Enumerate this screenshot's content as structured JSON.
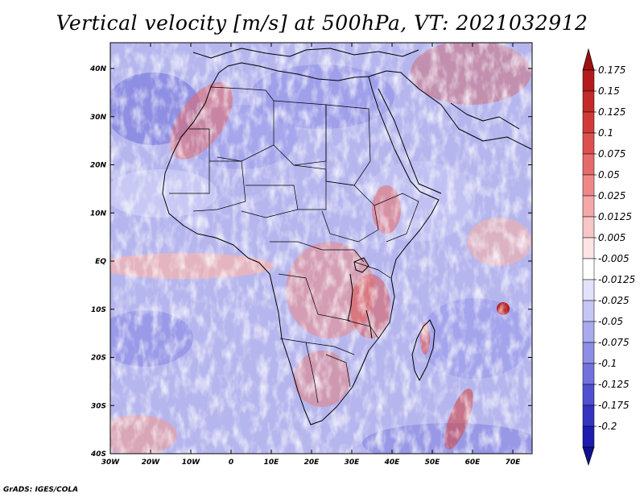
{
  "title": "Vertical velocity [m/s] at 500hPa, VT: 2021032912",
  "credit": "GrADS: IGES/COLA",
  "lat_labels": [
    "40N",
    "30N",
    "20N",
    "10N",
    "EQ",
    "10S",
    "20S",
    "30S",
    "40S"
  ],
  "lon_labels": [
    "30W",
    "20W",
    "10W",
    "0",
    "10E",
    "20E",
    "30E",
    "40E",
    "50E",
    "60E",
    "70E"
  ],
  "colorbar": {
    "labels": [
      "0.175",
      "0.15",
      "0.125",
      "0.1",
      "0.075",
      "0.05",
      "0.025",
      "0.0125",
      "0.005",
      "-0.005",
      "-0.0125",
      "-0.025",
      "-0.05",
      "-0.075",
      "-0.1",
      "-0.125",
      "-0.175",
      "-0.2"
    ],
    "colors": [
      "#b41c1c",
      "#c42a2a",
      "#d23a3a",
      "#de5050",
      "#e66a6a",
      "#ee8888",
      "#f4a8a8",
      "#f8c6c6",
      "#fce4e4",
      "#ffffff",
      "#e2e2fa",
      "#c6c6f4",
      "#aaaaee",
      "#8e8ee6",
      "#7272de",
      "#5050d0",
      "#3434c2",
      "#1c1cae"
    ],
    "top_arrow_color": "#a01010",
    "bottom_arrow_color": "#10108e"
  }
}
